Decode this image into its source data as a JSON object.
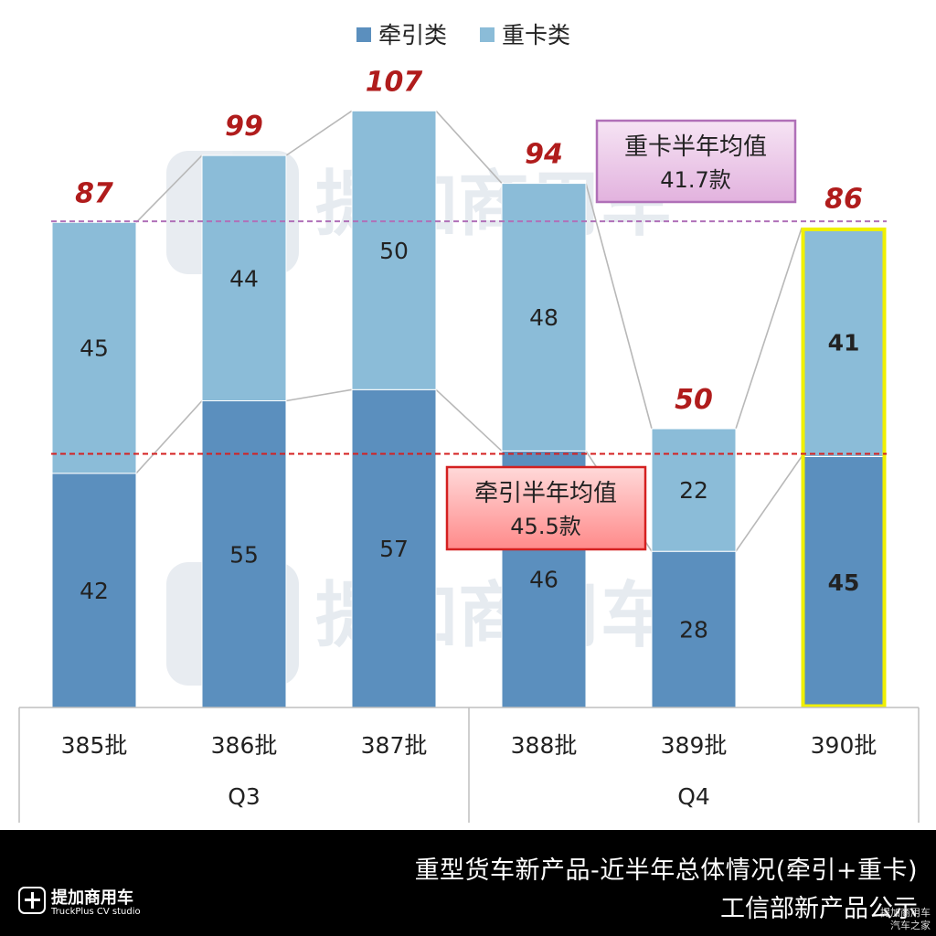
{
  "chart_data": {
    "type": "bar",
    "stacked": true,
    "legend_position": "top-center",
    "categories": [
      "385批",
      "386批",
      "387批",
      "388批",
      "389批",
      "390批"
    ],
    "groups": [
      {
        "label": "Q3",
        "categories": [
          "385批",
          "386批",
          "387批"
        ]
      },
      {
        "label": "Q4",
        "categories": [
          "388批",
          "389批",
          "390批"
        ]
      }
    ],
    "series": [
      {
        "name": "牵引类",
        "color": "#5b8fbe",
        "values": [
          42,
          55,
          57,
          46,
          28,
          45
        ]
      },
      {
        "name": "重卡类",
        "color": "#8bbcd8",
        "values": [
          45,
          44,
          50,
          48,
          22,
          41
        ]
      }
    ],
    "totals": [
      "87",
      "99",
      "107",
      "94",
      "50",
      "86"
    ],
    "total_color": "#b01c1c",
    "highlight_category": "390批",
    "highlight_color": "#f0f000",
    "ylim": [
      0,
      110
    ],
    "reference_lines": [
      {
        "label_line1": "牵引半年均值",
        "label_line2": "45.5款",
        "value": 45.5,
        "color": "#d42020"
      },
      {
        "label_line1": "重卡半年均值",
        "label_line2": "41.7款",
        "value": 87.2,
        "color": "#b070b8"
      }
    ],
    "watermark": "提加商用车"
  },
  "footer": {
    "title": "重型货车新产品-近半年总体情况(牵引+重卡)",
    "subtitle": "工信部新产品公示",
    "logo_name": "提加商用车",
    "logo_sub": "TruckPlus CV studio",
    "watermark_line1": "提加商用车",
    "watermark_line2": "汽车之家"
  }
}
